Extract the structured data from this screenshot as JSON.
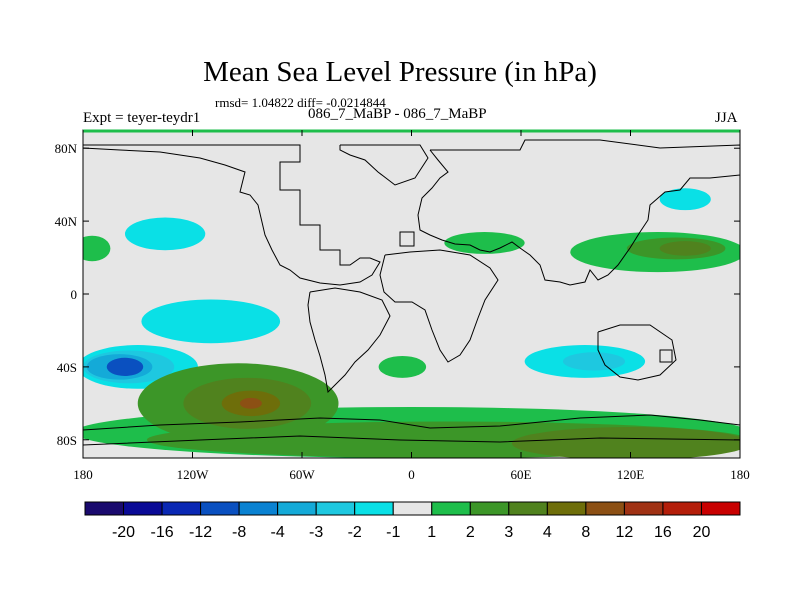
{
  "header": {
    "title": "Mean Sea Level Pressure (in hPa)",
    "stats": "rmsd= 1.04822 diff= -0.0214844",
    "expt": "Expt = teyer-teydr1",
    "subtitle": "086_7_MaBP - 086_7_MaBP",
    "season": "JJA"
  },
  "chart_data": {
    "type": "heatmap",
    "title": "Mean Sea Level Pressure (in hPa)",
    "subtitle": "086_7_MaBP - 086_7_MaBP",
    "xlabel": "",
    "ylabel": "",
    "xlim": [
      -180,
      180
    ],
    "ylim": [
      -90,
      90
    ],
    "x_ticks": [
      {
        "value": -180,
        "label": "180"
      },
      {
        "value": -120,
        "label": "120W"
      },
      {
        "value": -60,
        "label": "60W"
      },
      {
        "value": 0,
        "label": "0"
      },
      {
        "value": 60,
        "label": "60E"
      },
      {
        "value": 120,
        "label": "120E"
      },
      {
        "value": 180,
        "label": "180"
      }
    ],
    "y_ticks": [
      {
        "value": 80,
        "label": "80N"
      },
      {
        "value": 40,
        "label": "40N"
      },
      {
        "value": 0,
        "label": "0"
      },
      {
        "value": -40,
        "label": "40S"
      },
      {
        "value": -80,
        "label": "80S"
      }
    ],
    "background_color": "#e6e6e6",
    "colorbar": {
      "levels": [
        "-20",
        "-16",
        "-12",
        "-8",
        "-4",
        "-3",
        "-2",
        "-1",
        "1",
        "2",
        "3",
        "4",
        "8",
        "12",
        "16",
        "20"
      ],
      "colors": [
        "#1a0a6e",
        "#0a0a96",
        "#0a28b4",
        "#0a50c0",
        "#0a82d2",
        "#14aad8",
        "#1ec8e0",
        "#0ae0e6",
        "#e6e6e6",
        "#1ebe4b",
        "#3c9628",
        "#50821e",
        "#6e6e0a",
        "#8c5014",
        "#a03214",
        "#b41e0a",
        "#c80000"
      ]
    },
    "anomaly_regions": [
      {
        "name": "n-pacific-low",
        "lon": -135,
        "lat": 33,
        "rlon": 22,
        "rlat": 9,
        "color": "#0ae0e6"
      },
      {
        "name": "s-pacific-low-outer",
        "lon": -150,
        "lat": -40,
        "rlon": 33,
        "rlat": 12,
        "color": "#0ae0e6"
      },
      {
        "name": "s-pacific-low-mid",
        "lon": -155,
        "lat": -40,
        "rlon": 25,
        "rlat": 9,
        "color": "#1ec8e0"
      },
      {
        "name": "s-pacific-low-inner",
        "lon": -160,
        "lat": -40,
        "rlon": 18,
        "rlat": 7,
        "color": "#14aad8"
      },
      {
        "name": "s-pacific-low-core",
        "lon": -157,
        "lat": -40,
        "rlon": 10,
        "rlat": 5,
        "color": "#0a50c0"
      },
      {
        "name": "central-pacific-low",
        "lon": -110,
        "lat": -15,
        "rlon": 38,
        "rlat": 12,
        "color": "#0ae0e6"
      },
      {
        "name": "s-indian-low-outer",
        "lon": 95,
        "lat": -37,
        "rlon": 33,
        "rlat": 9,
        "color": "#0ae0e6"
      },
      {
        "name": "s-indian-low-inner",
        "lon": 100,
        "lat": -37,
        "rlon": 17,
        "rlat": 5,
        "color": "#1ec8e0"
      },
      {
        "name": "nw-pacific-low",
        "lon": 150,
        "lat": 52,
        "rlon": 14,
        "rlat": 6,
        "color": "#0ae0e6"
      },
      {
        "name": "ne-pacific-high-edge",
        "lon": -175,
        "lat": 25,
        "rlon": 10,
        "rlat": 7,
        "color": "#1ebe4b"
      },
      {
        "name": "n-pacific-high-outer",
        "lon": 135,
        "lat": 23,
        "rlon": 48,
        "rlat": 11,
        "color": "#1ebe4b"
      },
      {
        "name": "n-pacific-high-inner",
        "lon": 145,
        "lat": 25,
        "rlon": 27,
        "rlat": 6,
        "color": "#3c9628"
      },
      {
        "name": "n-pacific-high-core",
        "lon": 150,
        "lat": 25,
        "rlon": 14,
        "rlat": 4,
        "color": "#50821e"
      },
      {
        "name": "mediterranean-high",
        "lon": 40,
        "lat": 28,
        "rlon": 22,
        "rlat": 6,
        "color": "#1ebe4b"
      },
      {
        "name": "s-atlantic-high",
        "lon": -5,
        "lat": -40,
        "rlon": 13,
        "rlat": 6,
        "color": "#1ebe4b"
      },
      {
        "name": "southern-ocean-high-band",
        "lon": 0,
        "lat": -76,
        "rlon": 185,
        "rlat": 14,
        "color": "#1ebe4b"
      },
      {
        "name": "antarctic-high-band",
        "lon": 20,
        "lat": -80,
        "rlon": 165,
        "rlat": 10,
        "color": "#3c9628"
      },
      {
        "name": "antarctic-high-east",
        "lon": 120,
        "lat": -82,
        "rlon": 65,
        "rlat": 9,
        "color": "#50821e"
      },
      {
        "name": "s-pacific-high-outer",
        "lon": -95,
        "lat": -60,
        "rlon": 55,
        "rlat": 22,
        "color": "#3c9628"
      },
      {
        "name": "s-pacific-high-inner",
        "lon": -90,
        "lat": -60,
        "rlon": 35,
        "rlat": 14,
        "color": "#50821e"
      },
      {
        "name": "s-pacific-high-core",
        "lon": -88,
        "lat": -60,
        "rlon": 16,
        "rlat": 7,
        "color": "#6e6e0a"
      },
      {
        "name": "s-pacific-high-peak",
        "lon": -88,
        "lat": -60,
        "rlon": 6,
        "rlat": 3,
        "color": "#8c5014"
      }
    ]
  }
}
